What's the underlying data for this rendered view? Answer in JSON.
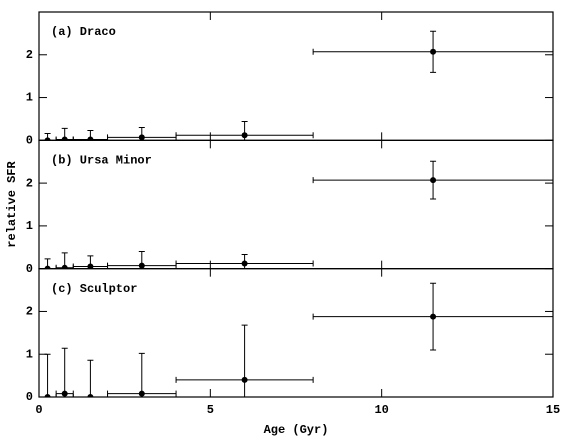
{
  "chart_data": [
    {
      "type": "scatter",
      "title": "(a) Draco",
      "x": [
        0.25,
        0.75,
        1.5,
        3,
        6,
        11.5
      ],
      "xerr": [
        0.25,
        0.25,
        0.5,
        1,
        2,
        3.5
      ],
      "values": [
        0,
        0.02,
        0.02,
        0.07,
        0.12,
        2.07
      ],
      "yerr": [
        0.16,
        0.26,
        0.21,
        0.23,
        0.32,
        0.48
      ],
      "color": "#000000",
      "xlim": [
        0,
        15
      ],
      "xticks": [
        0,
        5,
        10,
        15
      ],
      "ylim": [
        0,
        3
      ],
      "yticks": [
        0,
        1,
        2
      ]
    },
    {
      "type": "scatter",
      "title": "(b) Ursa Minor",
      "ylabel": "relative SFR",
      "x": [
        0.25,
        0.75,
        1.5,
        3,
        6,
        11.5
      ],
      "xerr": [
        0.25,
        0.25,
        0.5,
        1,
        2,
        3.5
      ],
      "values": [
        0,
        0.02,
        0.05,
        0.07,
        0.12,
        2.07
      ],
      "yerr": [
        0.23,
        0.35,
        0.25,
        0.33,
        0.21,
        0.44
      ],
      "color": "#000000",
      "xlim": [
        0,
        15
      ],
      "xticks": [
        0,
        5,
        10,
        15
      ],
      "ylim": [
        0,
        3
      ],
      "yticks": [
        0,
        1,
        2
      ]
    },
    {
      "type": "scatter",
      "title": "(c) Sculptor",
      "xlabel": "Age (Gyr)",
      "x": [
        0.25,
        0.75,
        1.5,
        3,
        6,
        11.5
      ],
      "xerr": [
        0.25,
        0.25,
        0.5,
        1,
        2,
        3.5
      ],
      "values": [
        0,
        0.08,
        0,
        0.08,
        0.4,
        1.88
      ],
      "yerr": [
        1.0,
        1.06,
        0.86,
        0.94,
        1.28,
        0.78
      ],
      "color": "#000000",
      "xlim": [
        0,
        15
      ],
      "xticks": [
        0,
        5,
        10,
        15
      ],
      "ylim": [
        0,
        3
      ],
      "yticks": [
        0,
        1,
        2
      ]
    }
  ]
}
